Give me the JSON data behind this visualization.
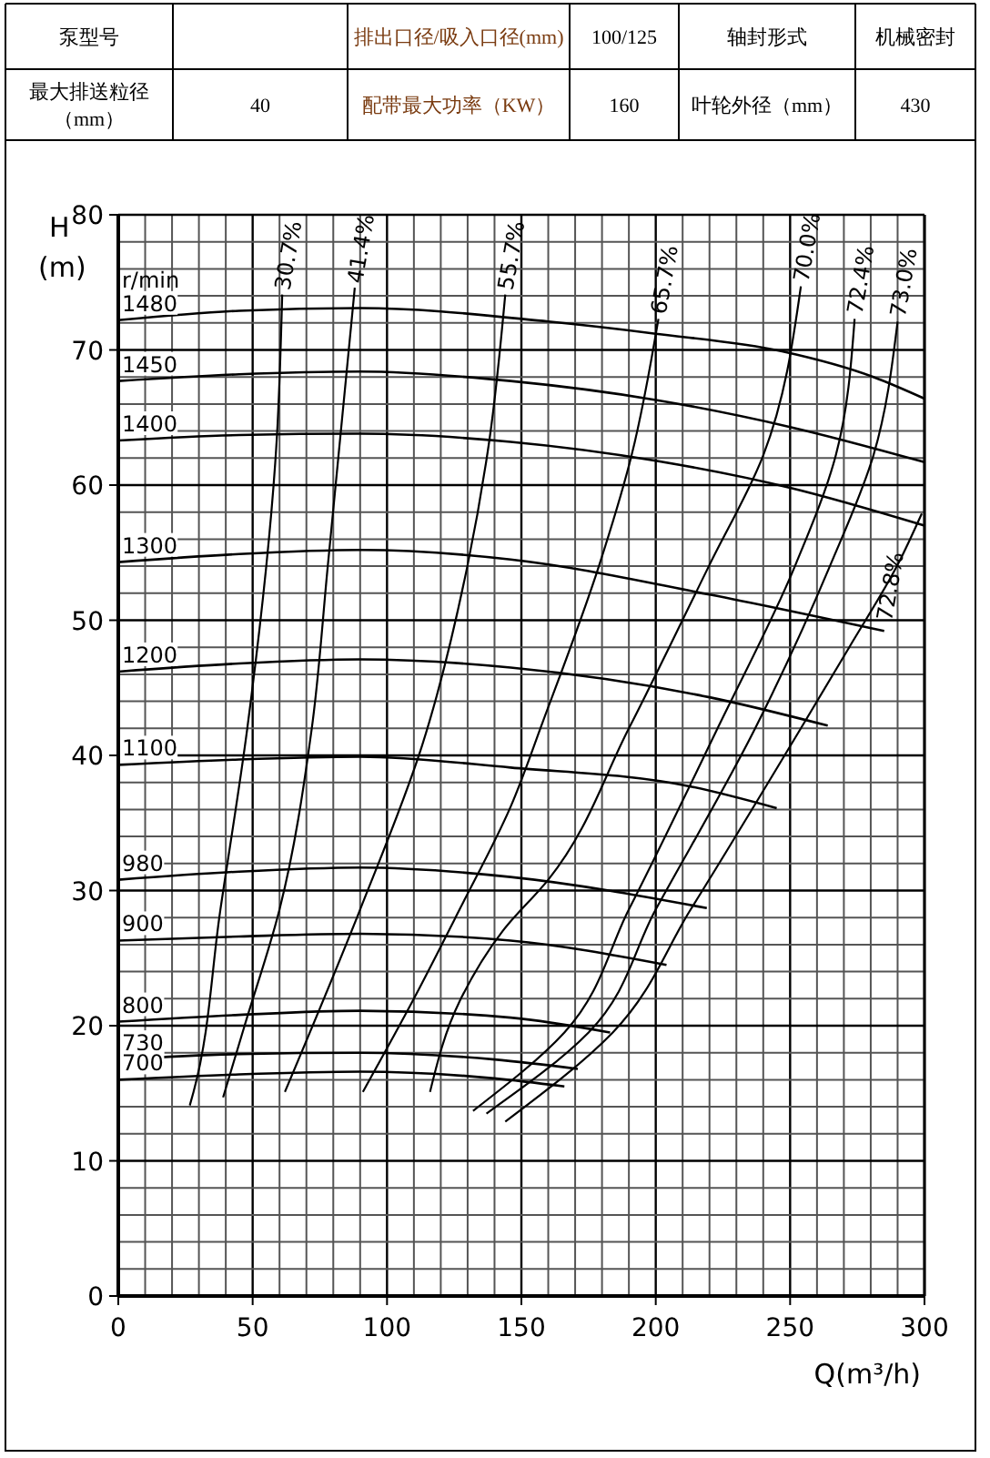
{
  "chart_data": {
    "type": "line",
    "xlabel": "Q(m³/h)",
    "ylabel": "H(m)",
    "xlim": [
      0,
      300
    ],
    "ylim": [
      0,
      80
    ],
    "xticks": [
      0,
      {
        "value": 10,
        "label": null
      },
      {
        "value": 20,
        "label": null
      },
      {
        "value": 30,
        "label": null
      },
      {
        "value": 40,
        "label": null
      },
      50,
      {
        "value": 60,
        "label": null
      },
      {
        "value": 70,
        "label": null
      },
      {
        "value": 80,
        "label": null
      },
      {
        "value": 90,
        "label": null
      },
      100,
      {
        "value": 110,
        "label": null
      },
      {
        "value": 120,
        "label": null
      },
      {
        "value": 130,
        "label": null
      },
      {
        "value": 140,
        "label": null
      },
      150,
      {
        "value": 160,
        "label": null
      },
      {
        "value": 170,
        "label": null
      },
      {
        "value": 180,
        "label": null
      },
      {
        "value": 190,
        "label": null
      },
      200,
      {
        "value": 210,
        "label": null
      },
      {
        "value": 220,
        "label": null
      },
      {
        "value": 230,
        "label": null
      },
      {
        "value": 240,
        "label": null
      },
      250,
      {
        "value": 260,
        "label": null
      },
      {
        "value": 270,
        "label": null
      },
      {
        "value": 280,
        "label": null
      },
      {
        "value": 290,
        "label": null
      },
      300
    ],
    "yticks": [
      0,
      {
        "value": 2,
        "label": null
      },
      {
        "value": 4,
        "label": null
      },
      {
        "value": 6,
        "label": null
      },
      {
        "value": 8,
        "label": null
      },
      10,
      {
        "value": 12,
        "label": null
      },
      {
        "value": 14,
        "label": null
      },
      {
        "value": 16,
        "label": null
      },
      {
        "value": 18,
        "label": null
      },
      20,
      {
        "value": 22,
        "label": null
      },
      {
        "value": 24,
        "label": null
      },
      {
        "value": 26,
        "label": null
      },
      {
        "value": 28,
        "label": null
      },
      30,
      {
        "value": 32,
        "label": null
      },
      {
        "value": 34,
        "label": null
      },
      {
        "value": 36,
        "label": null
      },
      {
        "value": 38,
        "label": null
      },
      40,
      {
        "value": 42,
        "label": null
      },
      {
        "value": 44,
        "label": null
      },
      {
        "value": 46,
        "label": null
      },
      {
        "value": 48,
        "label": null
      },
      50,
      {
        "value": 52,
        "label": null
      },
      {
        "value": 54,
        "label": null
      },
      {
        "value": 56,
        "label": null
      },
      {
        "value": 58,
        "label": null
      },
      60,
      {
        "value": 62,
        "label": null
      },
      {
        "value": 64,
        "label": null
      },
      {
        "value": 66,
        "label": null
      },
      {
        "value": 68,
        "label": null
      },
      70,
      {
        "value": 72,
        "label": null
      },
      {
        "value": 74,
        "label": null
      },
      {
        "value": 76,
        "label": null
      },
      {
        "value": 78,
        "label": null
      },
      80
    ],
    "grid": true,
    "line_style": "solid",
    "annotations": [
      "泵型号",
      "排出口径/吸入口径(mm)",
      "100/125",
      "轴封形式",
      "机械密封",
      "最大排送粒径（mm）",
      "40",
      "配带最大功率（KW）",
      "160",
      "叶轮外径（mm）",
      "430",
      "r/min"
    ],
    "series": [
      {
        "name": "1480",
        "color": "#000000",
        "x": [
          0,
          45,
          90,
          160,
          200,
          247,
          281,
          300
        ],
        "values": [
          72.2,
          72.9,
          73.1,
          72.1,
          71.2,
          69.9,
          68.0,
          66.4
        ]
      },
      {
        "name": "1450",
        "color": "#000000",
        "x": [
          0,
          45,
          90,
          146,
          200,
          250,
          300
        ],
        "values": [
          67.7,
          68.2,
          68.4,
          67.7,
          66.3,
          64.3,
          61.7
        ]
      },
      {
        "name": "1400",
        "color": "#000000",
        "x": [
          0,
          45,
          90,
          146,
          200,
          250,
          300
        ],
        "values": [
          63.3,
          63.7,
          63.8,
          63.2,
          61.8,
          59.8,
          57.0
        ]
      },
      {
        "name": "1300",
        "color": "#000000",
        "x": [
          0,
          45,
          90,
          146,
          220,
          285
        ],
        "values": [
          54.3,
          54.9,
          55.2,
          54.5,
          51.9,
          49.2
        ]
      },
      {
        "name": "1200",
        "color": "#000000",
        "x": [
          0,
          45,
          90,
          146,
          220,
          264
        ],
        "values": [
          46.2,
          46.8,
          47.1,
          46.5,
          44.3,
          42.2
        ]
      },
      {
        "name": "1100",
        "color": "#000000",
        "x": [
          0,
          45,
          90,
          146,
          213,
          245
        ],
        "values": [
          39.3,
          39.7,
          39.9,
          39.1,
          37.7,
          36.1
        ]
      },
      {
        "name": "980",
        "color": "#000000",
        "x": [
          0,
          45,
          90,
          146,
          219
        ],
        "values": [
          30.8,
          31.4,
          31.7,
          31.0,
          28.7
        ]
      },
      {
        "name": "900",
        "color": "#000000",
        "x": [
          0,
          45,
          90,
          146,
          204
        ],
        "values": [
          26.3,
          26.6,
          26.8,
          26.3,
          24.5
        ]
      },
      {
        "name": "800",
        "color": "#000000",
        "x": [
          0,
          45,
          90,
          146,
          183
        ],
        "values": [
          20.3,
          20.8,
          21.1,
          20.6,
          19.5
        ]
      },
      {
        "name": "730",
        "color": "#000000",
        "x": [
          0,
          45,
          90,
          140,
          171
        ],
        "values": [
          17.5,
          17.9,
          18.0,
          17.5,
          16.8
        ]
      },
      {
        "name": "700",
        "color": "#000000",
        "x": [
          0,
          45,
          90,
          140,
          166
        ],
        "values": [
          16.0,
          16.4,
          16.6,
          16.1,
          15.5
        ]
      },
      {
        "name": "30.7%",
        "color": "#000000",
        "x": [
          26.6,
          28,
          38,
          48,
          59,
          61
        ],
        "values": [
          14.1,
          15.1,
          28.6,
          42.0,
          63.5,
          74.1
        ]
      },
      {
        "name": "41.4%",
        "color": "#000000",
        "x": [
          39,
          47,
          60,
          72,
          78,
          88
        ],
        "values": [
          14.7,
          20,
          28.6,
          42.0,
          54.1,
          74.6
        ]
      },
      {
        "name": "55.7%",
        "color": "#000000",
        "x": [
          62,
          90,
          113,
          130,
          138,
          144
        ],
        "values": [
          15.1,
          28.6,
          40.7,
          54.1,
          63.2,
          74.1
        ]
      },
      {
        "name": "65.7%",
        "color": "#000000",
        "x": [
          91,
          110,
          127,
          146,
          158,
          179,
          191,
          201
        ],
        "values": [
          15.1,
          22,
          28.6,
          36.2,
          42.5,
          54.1,
          62.2,
          72.3
        ]
      },
      {
        "name": "70.0%",
        "color": "#000000",
        "x": [
          116,
          127,
          143,
          160,
          190,
          220,
          240,
          254
        ],
        "values": [
          15.1,
          21.8,
          27,
          30.8,
          42.0,
          54.1,
          62.2,
          74.7
        ]
      },
      {
        "name": "72.4%",
        "color": "#000000",
        "x": [
          132,
          166,
          190,
          223,
          252,
          267,
          274
        ],
        "values": [
          13.7,
          19.5,
          28.6,
          42.0,
          54.1,
          62.2,
          72.3
        ]
      },
      {
        "name": "73.0%",
        "color": "#000000",
        "x": [
          137,
          175,
          200,
          237,
          265,
          281,
          290
        ],
        "values": [
          13.5,
          19.5,
          28.6,
          42.0,
          54.1,
          62.2,
          72.1
        ]
      },
      {
        "name": "72.8%",
        "color": "#000000",
        "x": [
          144,
          184,
          213,
          254,
          272,
          290,
          299
        ],
        "values": [
          12.9,
          19.5,
          28.6,
          42.0,
          48,
          54.1,
          57.9
        ]
      }
    ]
  }
}
